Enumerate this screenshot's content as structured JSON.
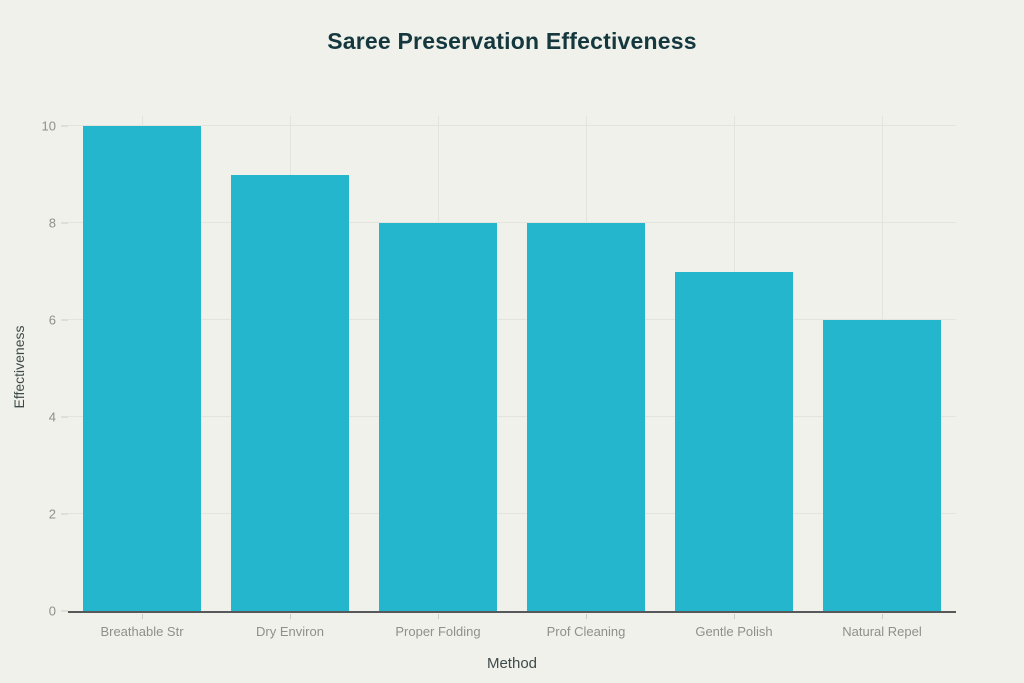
{
  "chart_data": {
    "type": "bar",
    "title": "Saree Preservation Effectiveness",
    "xlabel": "Method",
    "ylabel": "Effectiveness",
    "categories": [
      "Breathable Str",
      "Dry Environ",
      "Proper Folding",
      "Prof Cleaning",
      "Gentle Polish",
      "Natural Repel"
    ],
    "values": [
      10,
      9,
      8,
      8,
      7,
      6
    ],
    "ylim": [
      0,
      10
    ],
    "yticks": [
      0,
      2,
      4,
      6,
      8,
      10
    ],
    "grid": "both",
    "legend": "none"
  },
  "colors": {
    "background": "#F0F1EA",
    "bar": "#23B6CD",
    "title": "#15383F",
    "axis_label": "#3E4B4B",
    "tick_label": "#8F908B",
    "gridline": "#E3E4DD",
    "axis_line": "#56585A",
    "tick_mark": "#CCCDC6"
  }
}
